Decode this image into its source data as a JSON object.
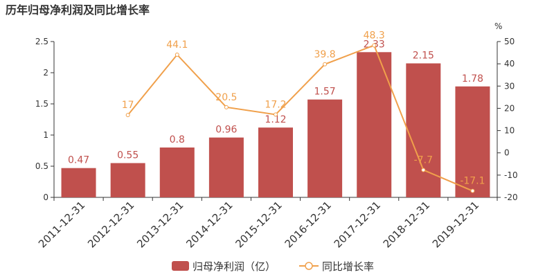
{
  "chart_data": {
    "type": "bar+line",
    "title": "历年归母净利润及同比增长率",
    "categories": [
      "2011-12-31",
      "2012-12-31",
      "2013-12-31",
      "2014-12-31",
      "2015-12-31",
      "2016-12-31",
      "2017-12-31",
      "2018-12-31",
      "2019-12-31"
    ],
    "left_axis": {
      "label": "",
      "min": 0,
      "max": 2.5,
      "ticks": [
        "0",
        "0.5",
        "1",
        "1.5",
        "2",
        "2.5"
      ]
    },
    "right_axis": {
      "label": "%",
      "min": -20,
      "max": 50,
      "ticks": [
        "-20",
        "-10",
        "0",
        "10",
        "20",
        "30",
        "40",
        "50"
      ]
    },
    "series": [
      {
        "name": "归母净利润（亿）",
        "type": "bar",
        "axis": "left",
        "color": "#c0504d",
        "values": [
          0.47,
          0.55,
          0.8,
          0.96,
          1.12,
          1.57,
          2.33,
          2.15,
          1.78
        ],
        "labels": [
          "0.47",
          "0.55",
          "0.8",
          "0.96",
          "1.12",
          "1.57",
          "2.33",
          "2.15",
          "1.78"
        ]
      },
      {
        "name": "同比增长率",
        "type": "line",
        "axis": "right",
        "color": "#f0a04b",
        "values": [
          null,
          17,
          44.1,
          20.5,
          17.2,
          39.8,
          48.3,
          -7.7,
          -17.1
        ],
        "labels": [
          "",
          "17",
          "44.1",
          "20.5",
          "17.2",
          "39.8",
          "48.3",
          "-7.7",
          "-17.1"
        ]
      }
    ],
    "legend_position": "bottom-center",
    "grid": false
  }
}
